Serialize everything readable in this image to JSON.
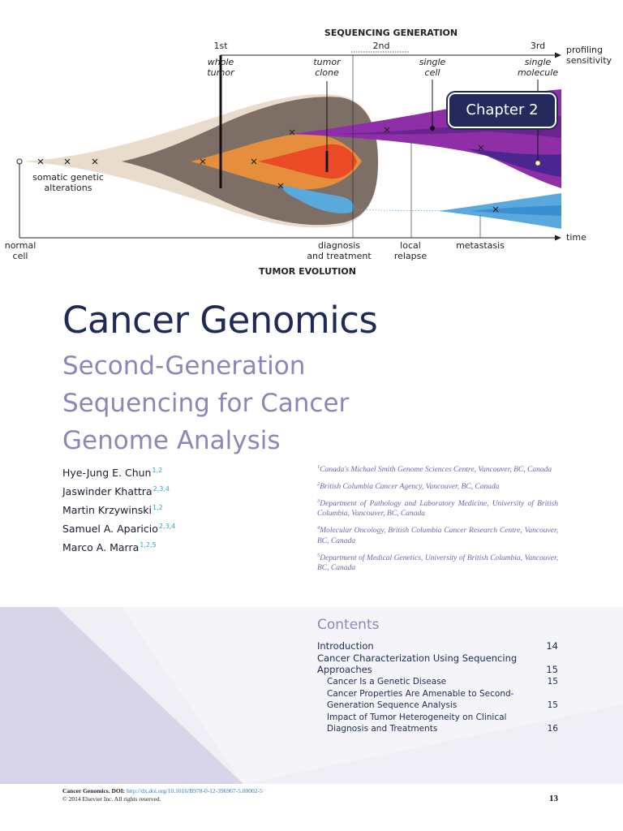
{
  "figure": {
    "top_heading": "SEQUENCING GENERATION",
    "bottom_heading": "TUMOR EVOLUTION",
    "generations": [
      {
        "label": "1st",
        "sub": "whole\ntumor"
      },
      {
        "label": "2nd",
        "sub": ""
      },
      {
        "label": "3rd",
        "sub": "single\nmolecule"
      }
    ],
    "resolution_labels": [
      "tumor\nclone",
      "single\ncell"
    ],
    "axis_y_label": "profiling\nsensitivity",
    "axis_x_label": "time",
    "events": [
      "normal\ncell",
      "diagnosis\nand treatment",
      "local\nrelapse",
      "metastasis"
    ],
    "annotation": "somatic genetic\nalterations",
    "colors": {
      "tumor": "#7d6e66",
      "clone_orange": "#e58f3c",
      "clone_red": "#ea4a25",
      "clone_blue": "#5aa9dc",
      "relapse_purple": "#8e2fa8",
      "axis": "#222222"
    }
  },
  "chapter_tab": "Chapter 2",
  "title": "Cancer Genomics",
  "subtitle": "Second-Generation Sequencing for Cancer Genome Analysis",
  "authors": [
    {
      "name": "Hye-Jung E. Chun",
      "sup": "1,2"
    },
    {
      "name": "Jaswinder Khattra",
      "sup": "2,3,4"
    },
    {
      "name": "Martin Krzywinski",
      "sup": "1,2"
    },
    {
      "name": "Samuel A. Aparicio",
      "sup": "2,3,4"
    },
    {
      "name": "Marco A. Marra",
      "sup": "1,2,5"
    }
  ],
  "affiliations": [
    {
      "num": "1",
      "text": "Canada's Michael Smith Genome Sciences Centre, Vancouver, BC, Canada"
    },
    {
      "num": "2",
      "text": "British Columbia Cancer Agency, Vancouver, BC, Canada"
    },
    {
      "num": "3",
      "text": "Department of Pathology and Laboratory Medicine, University of British Columbia, Vancouver, BC, Canada"
    },
    {
      "num": "4",
      "text": "Molecular Oncology, British Columbia Cancer Research Centre, Vancouver, BC, Canada"
    },
    {
      "num": "5",
      "text": "Department of Medical Genetics, University of British Columbia, Vancouver, BC, Canada"
    }
  ],
  "contents": {
    "heading": "Contents",
    "items": [
      {
        "title": "Introduction",
        "page": "14",
        "level": 1
      },
      {
        "title": "Cancer Characterization Using Sequencing Approaches",
        "page": "15",
        "level": 1
      },
      {
        "title": "Cancer Is a Genetic Disease",
        "page": "15",
        "level": 2
      },
      {
        "title": "Cancer Properties Are Amenable to Second-Generation Sequence Analysis",
        "page": "15",
        "level": 2
      },
      {
        "title": "Impact of Tumor Heterogeneity on Clinical Diagnosis and Treatments",
        "page": "16",
        "level": 2
      }
    ]
  },
  "footer": {
    "book": "Cancer Genomics.",
    "doi_label": "DOI:",
    "doi": "http://dx.doi.org/10.1016/B978-0-12-396967-5.00002-5",
    "copyright": "© 2014 Elsevier Inc. All rights reserved."
  },
  "page_number": "13"
}
